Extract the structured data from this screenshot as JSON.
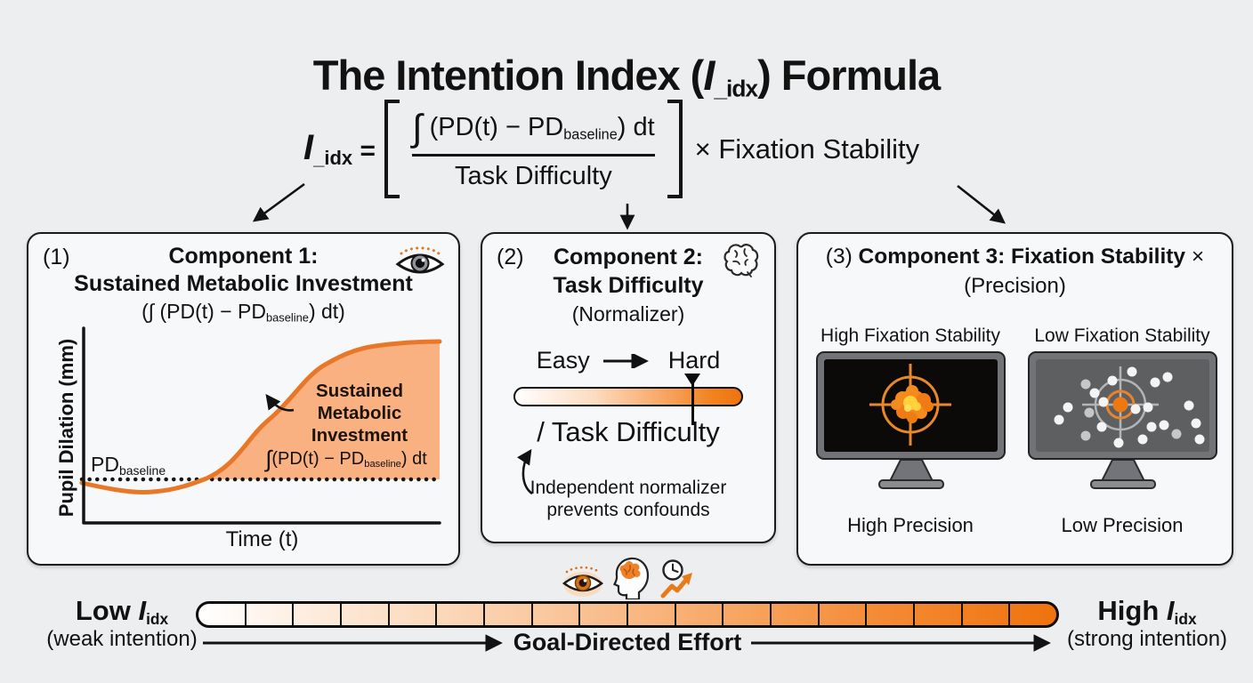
{
  "colors": {
    "background": "#eceef0",
    "panel": "#f7f8f9",
    "ink": "#121212",
    "accent_orange": "#ef7612",
    "curve_orange": "#e87728",
    "area_fill_orange": "#f9b181"
  },
  "title": {
    "pre": "The Intention Index (",
    "var": "I",
    "sub": "_idx",
    "post": ") Formula"
  },
  "formula": {
    "var": "I",
    "sub": "_idx",
    "eq": "=",
    "num_int": "∫",
    "num_pre": " (PD(t) − PD",
    "num_sub": "baseline",
    "num_post": ") dt",
    "den": "Task Difficulty",
    "times": "× Fixation Stability"
  },
  "component1": {
    "number": "(1)",
    "title1": "Component 1:",
    "title2": "Sustained Metabolic Investment",
    "sub_pre": "(∫ (PD(t) − PD",
    "sub_sub": "baseline",
    "sub_post": ") dt)",
    "chart": {
      "ylabel": "Pupil Dilation (mm)",
      "xlabel": "Time (t)",
      "baseline_pre": "PD",
      "baseline_sub": "baseline",
      "annotation": [
        "Sustained",
        "Metabolic",
        "Investment"
      ],
      "integral_int": "∫",
      "integral_pre": "(PD(t) − PD",
      "integral_sub": "baseline",
      "integral_post": ") dt"
    }
  },
  "component2": {
    "number": "(2)",
    "title1": "Component 2:",
    "title2": "Task Difficulty",
    "subtitle": "(Normalizer)",
    "easy": "Easy",
    "hard": "Hard",
    "divide_label": "/ Task Difficulty",
    "note1": "Independent normalizer",
    "note2": "prevents confounds"
  },
  "component3": {
    "number": "(3) ",
    "title_bold": "Component 3: Fixation Stability",
    "times": " ×",
    "subtitle": "(Precision)",
    "monitors": [
      {
        "stability_label": "High Fixation Stability",
        "precision_label": "High Precision",
        "blob": [
          [
            99,
            51,
            17,
            "#f5831f"
          ],
          [
            88,
            44,
            8,
            "#f58a1f"
          ],
          [
            112,
            46,
            8,
            "#f07a16"
          ],
          [
            89,
            59,
            8,
            "#f07a16"
          ],
          [
            109,
            60,
            7,
            "#f58a1f"
          ],
          [
            99,
            36,
            7,
            "#f58a1f"
          ],
          [
            99,
            66,
            6,
            "#ef7c12"
          ],
          [
            81,
            51,
            6,
            "#f58a1f"
          ],
          [
            117,
            53,
            6,
            "#ef7c12"
          ],
          [
            97,
            49,
            8,
            "#ffd23c"
          ],
          [
            104,
            53,
            5,
            "#ffd23c"
          ],
          [
            94,
            55,
            4,
            "#ffdf5a"
          ]
        ]
      },
      {
        "stability_label": "Low Fixation Stability",
        "precision_label": "Low Precision",
        "dots": [
          [
            108,
            14,
            5.5,
            "#f4f4f4"
          ],
          [
            148,
            20,
            5.5,
            "#f4f4f4"
          ],
          [
            56,
            28,
            5.5,
            "#c6c7c9"
          ],
          [
            66,
            38,
            5.5,
            "#f4f4f4"
          ],
          [
            76,
            48,
            5.5,
            "#f4f4f4"
          ],
          [
            36,
            54,
            5.5,
            "#f4f4f4"
          ],
          [
            60,
            60,
            5.5,
            "#c6c7c9"
          ],
          [
            26,
            68,
            5.5,
            "#f4f4f4"
          ],
          [
            74,
            76,
            5.5,
            "#f4f4f4"
          ],
          [
            112,
            56,
            5.5,
            "#f4f4f4"
          ],
          [
            126,
            54,
            5.5,
            "#f4f4f4"
          ],
          [
            130,
            76,
            5.5,
            "#f4f4f4"
          ],
          [
            144,
            74,
            5.5,
            "#f4f4f4"
          ],
          [
            158,
            84,
            5.5,
            "#c6c7c9"
          ],
          [
            172,
            52,
            5.5,
            "#f4f4f4"
          ],
          [
            180,
            72,
            5.5,
            "#f4f4f4"
          ],
          [
            184,
            90,
            5.5,
            "#f4f4f4"
          ],
          [
            120,
            90,
            5.5,
            "#f4f4f4"
          ],
          [
            93,
            94,
            5.5,
            "#f4f4f4"
          ],
          [
            56,
            86,
            5.5,
            "#c6c7c9"
          ],
          [
            134,
            26,
            5.5,
            "#f4f4f4"
          ],
          [
            86,
            24,
            5.5,
            "#f4f4f4"
          ]
        ]
      }
    ]
  },
  "footer": {
    "low_label": "Low ",
    "low_var": "I",
    "low_sub": "idx",
    "low_caption": "(weak intention)",
    "high_label": "High ",
    "high_var": "I",
    "high_sub": "idx",
    "high_caption": "(strong intention)",
    "effort_label": "Goal-Directed Effort",
    "segments": 18
  }
}
